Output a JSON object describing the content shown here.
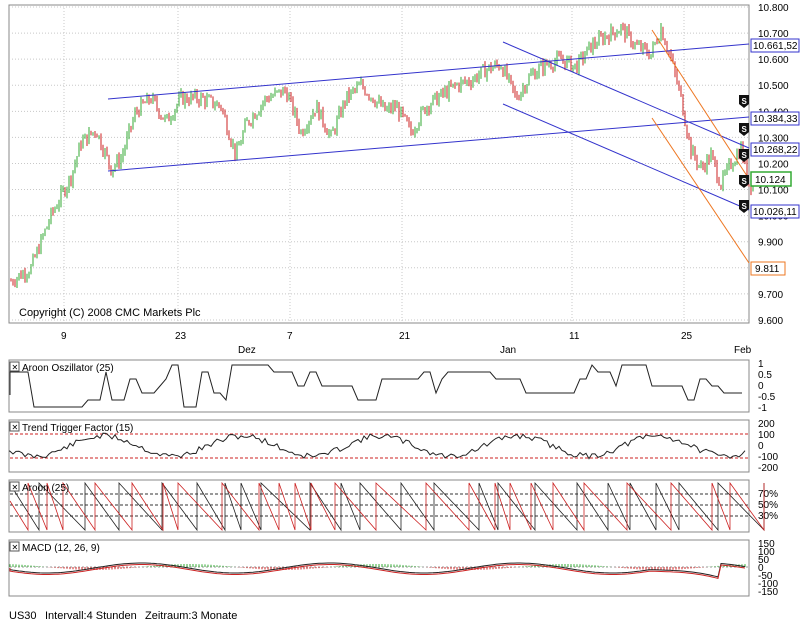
{
  "colors": {
    "up": "#33aa33",
    "down": "#cc2222",
    "channel": "#3333cc",
    "orange": "#ee7722",
    "grid": "#c8c8c8",
    "macd_signal": "#cc2222"
  },
  "main_chart": {
    "copyright": "Copyright (C) 2008 CMC Markets Plc",
    "x_ticks": [
      "9",
      "23",
      "7",
      "21",
      "11",
      "25"
    ],
    "months": [
      "Dez",
      "Jan",
      "Feb"
    ],
    "y_ticks": [
      "10.800",
      "10.700",
      "10.600",
      "10.500",
      "10.400",
      "10.300",
      "10.200",
      "10.100",
      "10.000",
      "9.900",
      "9.800",
      "9.700",
      "9.600"
    ],
    "price_labels": [
      "10.661,52",
      "10.384,33",
      "10.268,22",
      "10.124",
      "10.026,11",
      "9.811"
    ],
    "marker_icon": "s-badge-icon",
    "marker_label": "S"
  },
  "panels": {
    "aroon_osc": {
      "title": "Aroon Oszillator (25)",
      "y_ticks": [
        "1",
        "0.5",
        "0",
        "-0.5",
        "-1"
      ]
    },
    "ttf": {
      "title": "Trend Trigger Factor (15)",
      "y_ticks": [
        "200",
        "100",
        "0",
        "-100",
        "-200"
      ]
    },
    "aroon": {
      "title": "Aroon (25)",
      "y_ticks": [
        "70%",
        "50%",
        "30%"
      ]
    },
    "macd": {
      "title": "MACD (12, 26, 9)",
      "y_ticks": [
        "150",
        "100",
        "50",
        "0",
        "-50",
        "-100",
        "-150"
      ]
    }
  },
  "status": {
    "symbol": "US30",
    "interval": "Intervall:4 Stunden",
    "period": "Zeitraum:3 Monate"
  },
  "chart_data": {
    "type": "candlestick",
    "ylim": [
      9600,
      10800
    ],
    "price_points": [
      [
        0,
        9750
      ],
      [
        20,
        9800
      ],
      [
        40,
        10000
      ],
      [
        60,
        10150
      ],
      [
        70,
        10280
      ],
      [
        85,
        10330
      ],
      [
        100,
        10180
      ],
      [
        110,
        10220
      ],
      [
        125,
        10400
      ],
      [
        140,
        10450
      ],
      [
        155,
        10360
      ],
      [
        170,
        10450
      ],
      [
        190,
        10450
      ],
      [
        210,
        10420
      ],
      [
        225,
        10230
      ],
      [
        235,
        10350
      ],
      [
        255,
        10450
      ],
      [
        275,
        10480
      ],
      [
        290,
        10320
      ],
      [
        305,
        10420
      ],
      [
        320,
        10300
      ],
      [
        335,
        10450
      ],
      [
        350,
        10500
      ],
      [
        360,
        10460
      ],
      [
        375,
        10400
      ],
      [
        385,
        10420
      ],
      [
        400,
        10320
      ],
      [
        415,
        10420
      ],
      [
        430,
        10460
      ],
      [
        445,
        10500
      ],
      [
        460,
        10520
      ],
      [
        475,
        10560
      ],
      [
        490,
        10580
      ],
      [
        505,
        10450
      ],
      [
        520,
        10540
      ],
      [
        535,
        10580
      ],
      [
        550,
        10600
      ],
      [
        565,
        10570
      ],
      [
        580,
        10650
      ],
      [
        595,
        10690
      ],
      [
        610,
        10720
      ],
      [
        625,
        10650
      ],
      [
        640,
        10620
      ],
      [
        650,
        10720
      ],
      [
        660,
        10600
      ],
      [
        670,
        10450
      ],
      [
        680,
        10250
      ],
      [
        690,
        10180
      ],
      [
        700,
        10230
      ],
      [
        710,
        10120
      ],
      [
        720,
        10200
      ],
      [
        730,
        10260
      ],
      [
        737,
        10120
      ],
      [
        743,
        10124
      ]
    ]
  }
}
